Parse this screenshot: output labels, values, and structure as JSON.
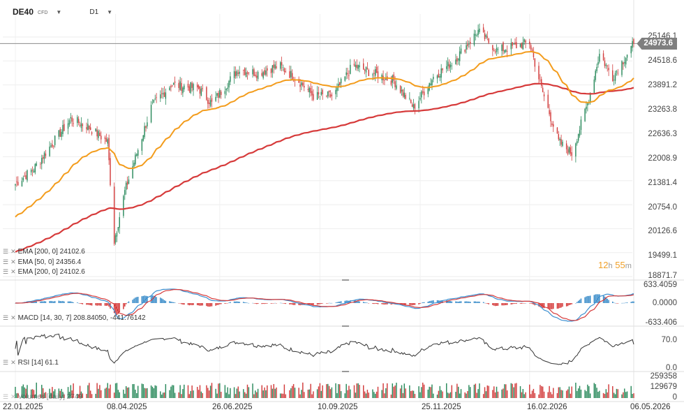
{
  "header": {
    "symbol": "DE40",
    "instrument": "CFD",
    "timeframe": "D1"
  },
  "current_price": "24973.6",
  "countdown": {
    "hours": "12",
    "h": "h",
    "minutes": "55",
    "m": "m"
  },
  "indicators": [
    {
      "label": "EMA [200, 0] 24102.6"
    },
    {
      "label": "EMA [50, 0] 24356.4"
    },
    {
      "label": "EMA [200, 0] 24102.6"
    }
  ],
  "macd": {
    "label": "MACD [14, 30, 7] 208.84050, -441.76142",
    "axis": [
      "633.4059",
      "0.0000",
      "-633.406"
    ]
  },
  "rsi": {
    "label": "RSI [14] 61.1",
    "axis": [
      "70.0",
      "0.0"
    ]
  },
  "volume": {
    "label": "Volumes [daily] 2749",
    "axis": [
      "259358",
      "129679",
      "0"
    ]
  },
  "price_axis": [
    "25146.1",
    "24518.6",
    "23891.2",
    "23263.8",
    "22636.3",
    "22008.9",
    "21381.4",
    "20754.0",
    "20126.6",
    "19499.1",
    "18871.7"
  ],
  "dates": [
    "22.01.2025",
    "08.04.2025",
    "26.06.2025",
    "10.09.2025",
    "25.11.2025",
    "16.02.2026",
    "06.05.2026"
  ],
  "colors": {
    "up": "#2a8a5c",
    "down": "#d23c3c",
    "ema50": "#f39c1c",
    "ema200": "#d63a3a",
    "macd_line": "#3b8fd0",
    "signal": "#d63a3a",
    "hist_up": "#2f86c6",
    "hist_down": "#d33030",
    "rsi": "#333333"
  },
  "chart_data": {
    "type": "candlestick",
    "instrument": "DE40",
    "x_range": [
      "22.01.2025",
      "06.05.2026"
    ],
    "ylim": [
      18871.7,
      25146.1
    ],
    "close_anchors": [
      {
        "date": "22.01.2025",
        "close": 21300
      },
      {
        "date": "05.02.2025",
        "close": 21700
      },
      {
        "date": "20.02.2025",
        "close": 22400
      },
      {
        "date": "05.03.2025",
        "close": 23000
      },
      {
        "date": "18.03.2025",
        "close": 22800
      },
      {
        "date": "02.04.2025",
        "close": 22400
      },
      {
        "date": "07.04.2025",
        "close": 19800
      },
      {
        "date": "15.04.2025",
        "close": 21100
      },
      {
        "date": "05.05.2025",
        "close": 23300
      },
      {
        "date": "20.05.2025",
        "close": 23900
      },
      {
        "date": "10.06.2025",
        "close": 23800
      },
      {
        "date": "20.06.2025",
        "close": 23400
      },
      {
        "date": "10.07.2025",
        "close": 24300
      },
      {
        "date": "25.07.2025",
        "close": 24200
      },
      {
        "date": "10.08.2025",
        "close": 24400
      },
      {
        "date": "25.08.2025",
        "close": 24000
      },
      {
        "date": "05.09.2025",
        "close": 23600
      },
      {
        "date": "20.09.2025",
        "close": 23600
      },
      {
        "date": "05.10.2025",
        "close": 24400
      },
      {
        "date": "20.10.2025",
        "close": 24200
      },
      {
        "date": "05.11.2025",
        "close": 24000
      },
      {
        "date": "20.11.2025",
        "close": 23300
      },
      {
        "date": "05.12.2025",
        "close": 24100
      },
      {
        "date": "20.12.2025",
        "close": 24500
      },
      {
        "date": "08.01.2026",
        "close": 25300
      },
      {
        "date": "22.01.2026",
        "close": 24800
      },
      {
        "date": "05.02.2026",
        "close": 24900
      },
      {
        "date": "16.02.2026",
        "close": 25000
      },
      {
        "date": "25.02.2026",
        "close": 23800
      },
      {
        "date": "10.03.2026",
        "close": 22400
      },
      {
        "date": "20.03.2026",
        "close": 22100
      },
      {
        "date": "01.04.2026",
        "close": 23400
      },
      {
        "date": "10.04.2026",
        "close": 24700
      },
      {
        "date": "20.04.2026",
        "close": 24100
      },
      {
        "date": "06.05.2026",
        "close": 24973.6
      }
    ],
    "ema50_last": 24356.4,
    "ema200_last": 24102.6,
    "macd_last": 208.8405,
    "signal_last": -441.76142,
    "rsi_last": 61.1,
    "volume_last": 2749
  }
}
